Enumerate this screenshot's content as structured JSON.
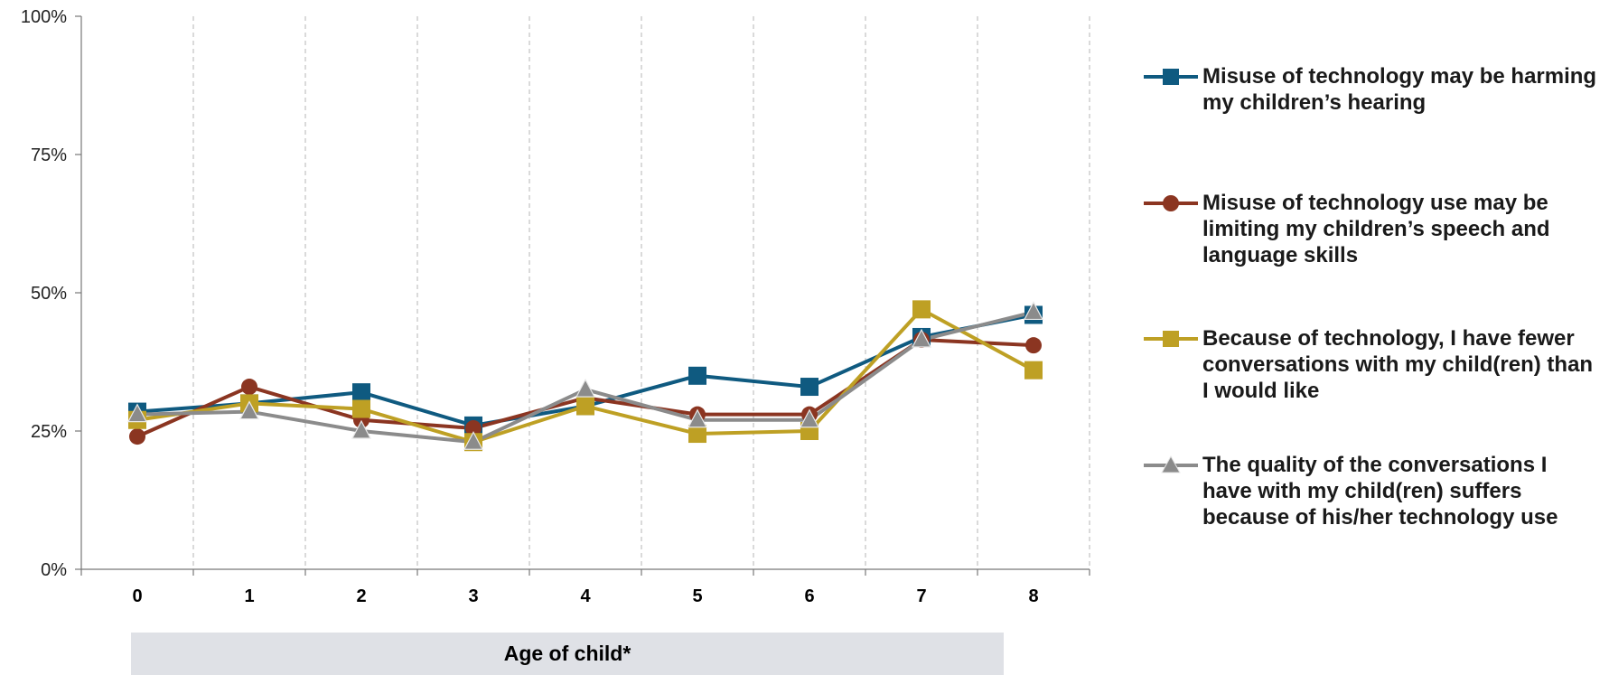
{
  "chart_data": {
    "type": "line",
    "x": [
      0,
      1,
      2,
      3,
      4,
      5,
      6,
      7,
      8
    ],
    "xlabel": "Age of child*",
    "ylim": [
      0,
      100
    ],
    "yticks": [
      "0%",
      "25%",
      "50%",
      "75%",
      "100%"
    ],
    "grid": "vertical dashed",
    "legend_position": "right",
    "series": [
      {
        "name": "Misuse of technology may be harming my children’s hearing",
        "values": [
          28.5,
          30,
          32,
          26,
          29.5,
          35,
          33,
          42,
          46
        ],
        "color": "#0f5a80",
        "marker": "square"
      },
      {
        "name": "Misuse of technology use may be limiting my children’s speech and language skills",
        "values": [
          24,
          33,
          27,
          25.5,
          31,
          28,
          28,
          41.5,
          40.5
        ],
        "color": "#8b3521",
        "marker": "circle"
      },
      {
        "name": "Because of technology, I have fewer conversations with my child(ren) than I would like",
        "values": [
          27,
          30,
          29,
          23,
          29.5,
          24.5,
          25,
          47,
          36
        ],
        "color": "#bea024",
        "marker": "square"
      },
      {
        "name": "The quality of the conversations I have with my child(ren) suffers because of his/her technology use",
        "values": [
          28,
          28.5,
          25,
          23,
          32.5,
          27,
          27,
          41.5,
          46.5
        ],
        "color": "#8b8b8b",
        "marker": "triangle"
      }
    ]
  }
}
